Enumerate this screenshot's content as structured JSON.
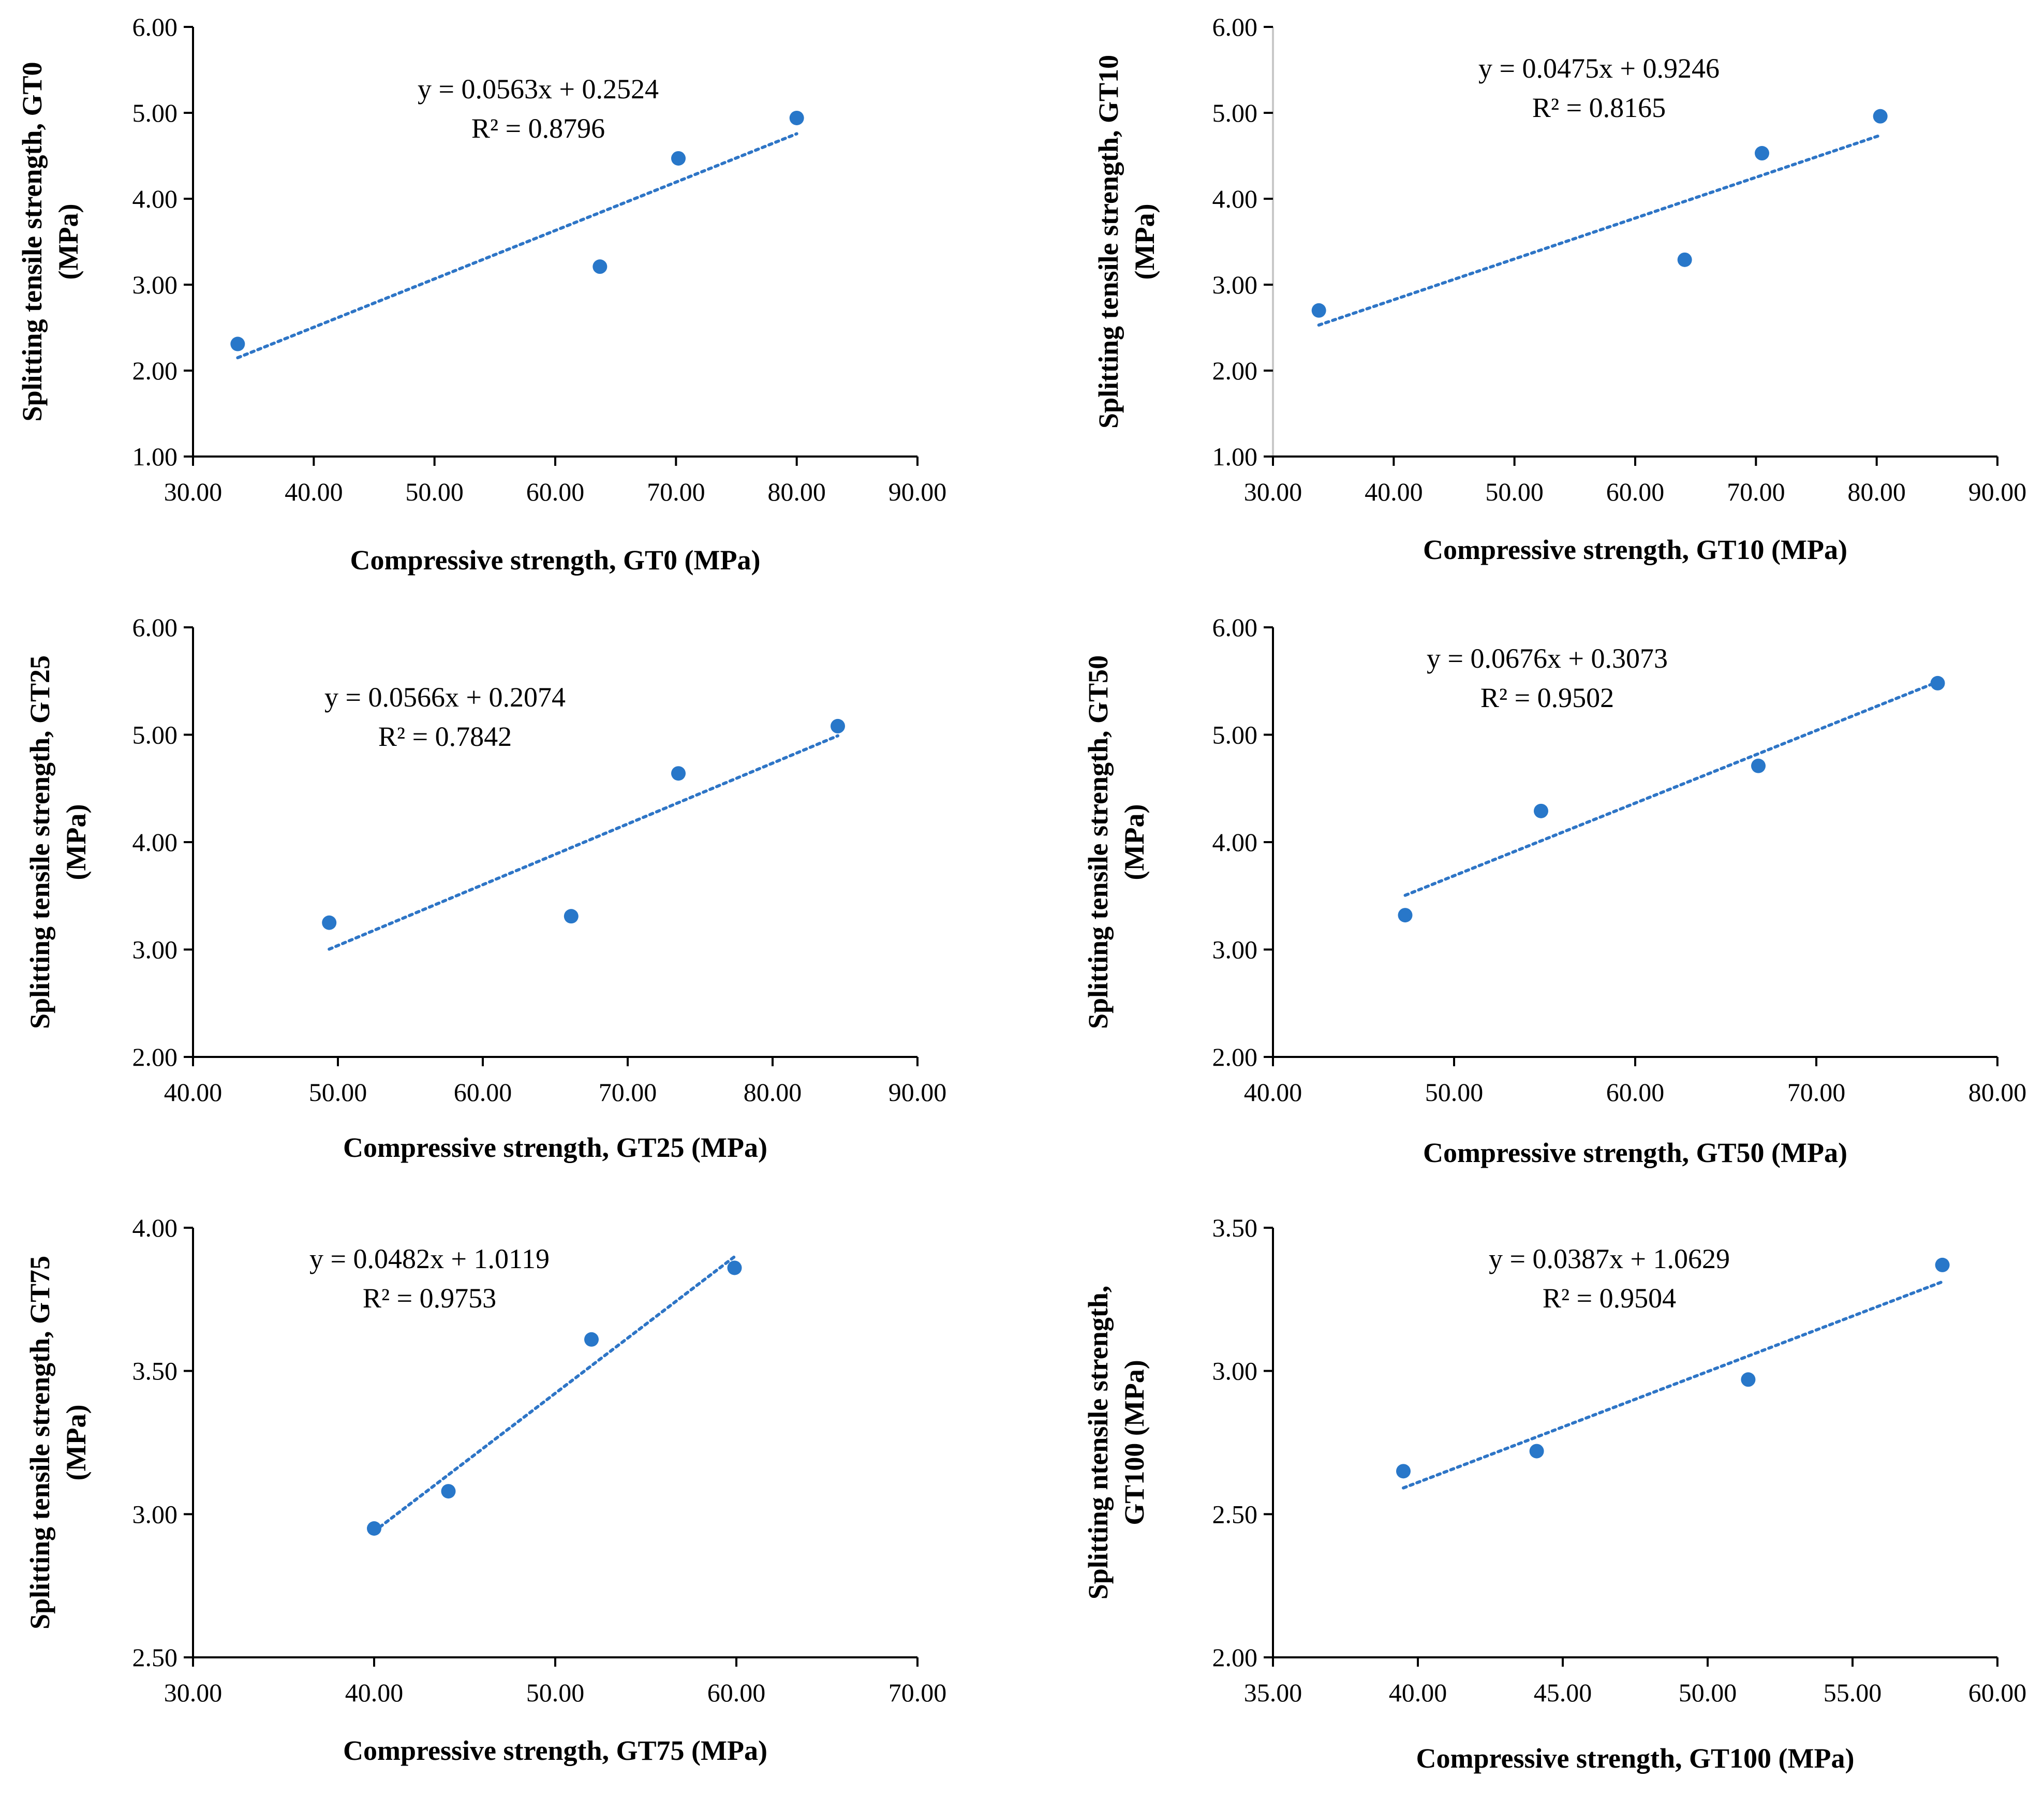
{
  "colors": {
    "marker": "#2877c9",
    "trend": "#2e75c6",
    "axis": "#000000"
  },
  "chart_data": [
    {
      "type": "scatter",
      "id": "gt0",
      "xlabel": "Compressive strength, GT0 (MPa)",
      "ylabel_lines": [
        "Splitting tensile strength, GT0",
        "(MPa)"
      ],
      "x": [
        33.7,
        63.7,
        70.2,
        80.0
      ],
      "y": [
        2.31,
        3.21,
        4.47,
        4.94
      ],
      "xlim": [
        30,
        90
      ],
      "ylim": [
        1,
        6
      ],
      "xstep": 10,
      "ystep": 1,
      "xticks": [
        "30.00",
        "40.00",
        "50.00",
        "60.00",
        "70.00",
        "80.00",
        "90.00"
      ],
      "yticks": [
        "1.00",
        "2.00",
        "3.00",
        "4.00",
        "5.00",
        "6.00"
      ],
      "trendline": {
        "slope": 0.0563,
        "intercept": 0.2524,
        "x_range": [
          33.7,
          80.0
        ]
      },
      "equation": "y = 0.0563x + 0.2524",
      "r2": "R² = 0.8796",
      "equation_position": "top-center"
    },
    {
      "type": "scatter",
      "id": "gt10",
      "xlabel": "Compressive strength, GT10 (MPa)",
      "ylabel_lines": [
        "Splitting tensile strength, GT10",
        "(MPa)"
      ],
      "x": [
        33.8,
        64.1,
        70.5,
        80.3
      ],
      "y": [
        2.7,
        3.29,
        4.53,
        4.96
      ],
      "xlim": [
        30,
        90
      ],
      "ylim": [
        1,
        6
      ],
      "xstep": 10,
      "ystep": 1,
      "xticks": [
        "30.00",
        "40.00",
        "50.00",
        "60.00",
        "70.00",
        "80.00",
        "90.00"
      ],
      "yticks": [
        "1.00",
        "2.00",
        "3.00",
        "4.00",
        "5.00",
        "6.00"
      ],
      "trendline": {
        "slope": 0.0475,
        "intercept": 0.9246,
        "x_range": [
          33.8,
          80.3
        ]
      },
      "equation": "y = 0.0475x + 0.9246",
      "r2": "R² = 0.8165",
      "equation_position": "top-center"
    },
    {
      "type": "scatter",
      "id": "gt25",
      "xlabel": "Compressive strength, GT25 (MPa)",
      "ylabel_lines": [
        "Splitting tensile strength, GT25",
        "(MPa)"
      ],
      "x": [
        49.4,
        66.1,
        73.5,
        84.5
      ],
      "y": [
        3.25,
        3.31,
        4.64,
        5.08
      ],
      "xlim": [
        40,
        90
      ],
      "ylim": [
        2,
        6
      ],
      "xstep": 10,
      "ystep": 1,
      "xticks": [
        "40.00",
        "50.00",
        "60.00",
        "70.00",
        "80.00",
        "90.00"
      ],
      "yticks": [
        "2.00",
        "3.00",
        "4.00",
        "5.00",
        "6.00"
      ],
      "trendline": {
        "slope": 0.0566,
        "intercept": 0.2074,
        "x_range": [
          49.4,
          84.5
        ]
      },
      "equation": "y = 0.0566x + 0.2074",
      "r2": "R² = 0.7842",
      "equation_position": "top-left"
    },
    {
      "type": "scatter",
      "id": "gt50",
      "xlabel": "Compressive strength, GT50 (MPa)",
      "ylabel_lines": [
        "Splitting tensile strength, GT50",
        "(MPa)"
      ],
      "x": [
        47.3,
        54.8,
        66.8,
        76.7
      ],
      "y": [
        3.32,
        4.29,
        4.71,
        5.48
      ],
      "xlim": [
        40,
        80
      ],
      "ylim": [
        2,
        6
      ],
      "xstep": 10,
      "ystep": 1,
      "xticks": [
        "40.00",
        "50.00",
        "60.00",
        "70.00",
        "80.00"
      ],
      "yticks": [
        "2.00",
        "3.00",
        "4.00",
        "5.00",
        "6.00"
      ],
      "trendline": {
        "slope": 0.0676,
        "intercept": 0.3073,
        "x_range": [
          47.3,
          76.7
        ]
      },
      "equation": "y = 0.0676x + 0.3073",
      "r2": "R² = 0.9502",
      "equation_position": "top-center"
    },
    {
      "type": "scatter",
      "id": "gt75",
      "xlabel": "Compressive strength, GT75 (MPa)",
      "ylabel_lines": [
        "Splitting tensile strength, GT75",
        "(MPa)"
      ],
      "x": [
        40.0,
        44.1,
        52.0,
        59.9
      ],
      "y": [
        2.95,
        3.08,
        3.61,
        3.86
      ],
      "xlim": [
        30,
        70
      ],
      "ylim": [
        2.5,
        4
      ],
      "xstep": 10,
      "ystep": 0.5,
      "xticks": [
        "30.00",
        "40.00",
        "50.00",
        "60.00",
        "70.00"
      ],
      "yticks": [
        "2.50",
        "3.00",
        "3.50",
        "4.00"
      ],
      "trendline": {
        "slope": 0.0482,
        "intercept": 1.0119,
        "x_range": [
          40.0,
          59.9
        ]
      },
      "equation": "y = 0.0482x + 1.0119",
      "r2": "R² = 0.9753",
      "equation_position": "top-left"
    },
    {
      "type": "scatter",
      "id": "gt100",
      "xlabel": "Compressive strength, GT100 (MPa)",
      "ylabel_lines": [
        "Splitting ntensile strength,",
        "GT100 (MPa)"
      ],
      "x": [
        39.5,
        44.1,
        51.4,
        58.1
      ],
      "y": [
        2.65,
        2.72,
        2.97,
        3.37
      ],
      "xlim": [
        35,
        60
      ],
      "ylim": [
        2,
        3.5
      ],
      "xstep": 5,
      "ystep": 0.5,
      "xticks": [
        "35.00",
        "40.00",
        "45.00",
        "50.00",
        "55.00",
        "60.00"
      ],
      "yticks": [
        "2.00",
        "2.50",
        "3.00",
        "3.50"
      ],
      "trendline": {
        "slope": 0.0387,
        "intercept": 1.0629,
        "x_range": [
          39.5,
          58.1
        ]
      },
      "equation": "y = 0.0387x + 1.0629",
      "r2": "R² = 0.9504",
      "equation_position": "top-center"
    }
  ]
}
